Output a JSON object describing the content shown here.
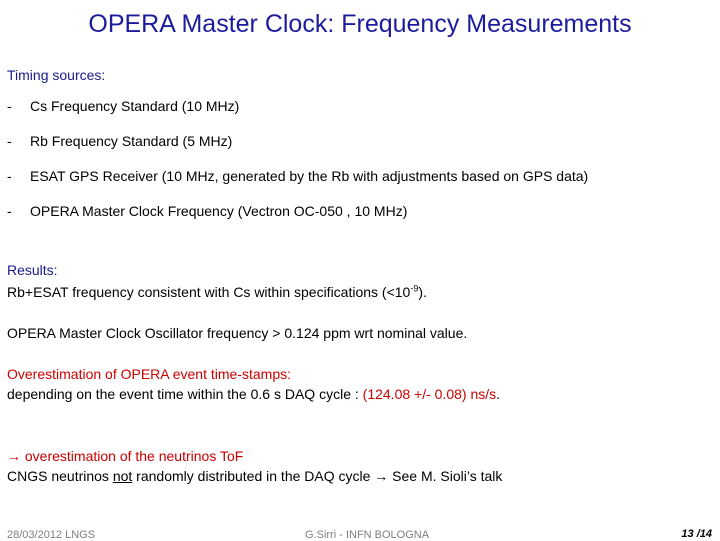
{
  "title": "OPERA Master Clock: Frequency Measurements",
  "timing_heading": "Timing sources:",
  "bullet_char": "-",
  "timing_items": [
    "Cs Frequency Standard  (10 MHz)",
    "Rb Frequency Standard (5 MHz)",
    "ESAT GPS Receiver (10 MHz, generated by the Rb with adjustments based on GPS data)",
    "OPERA Master Clock Frequency (Vectron OC-050 , 10 MHz)"
  ],
  "results": {
    "heading": "Results:",
    "line1_pre": "Rb+ESAT frequency consistent with Cs within specifications  (<10",
    "line1_exp": "-9",
    "line1_post": ").",
    "line2": "OPERA Master Clock Oscillator  frequency > 0.124 ppm wrt nominal value.",
    "over_heading": "Overestimation of OPERA event time-stamps:",
    "over_line_pre": "depending on the event time within the 0.6 s DAQ cycle :   ",
    "over_line_value": "(124.08 +/- 0.08) ns/s",
    "over_line_post": ".",
    "arrow": "→",
    "tof_text": " overestimation of the neutrinos ToF",
    "cngs_pre": "CNGS neutrinos  ",
    "cngs_not": "not",
    "cngs_post": " randomly distributed in the DAQ cycle ",
    "cngs_end": " See M. Sioli’s talk"
  },
  "footer": {
    "date": "28/03/2012 LNGS",
    "author": "G.Sirri - INFN BOLOGNA",
    "page": "13 /14"
  },
  "colors": {
    "title": "#1c1c9c",
    "heading": "#1a1a8c",
    "highlight": "#cc0000",
    "footer": "#7f7f7f"
  }
}
